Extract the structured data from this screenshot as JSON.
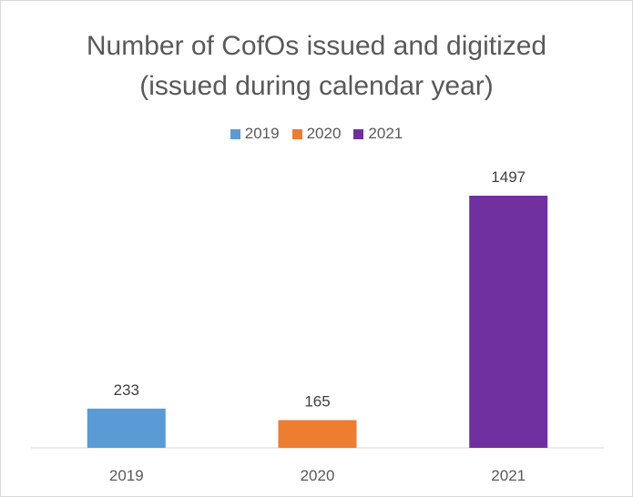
{
  "chart_data": {
    "type": "bar",
    "title_line1": "Number of CofOs issued and digitized",
    "title_line2": "(issued during calendar year)",
    "categories": [
      "2019",
      "2020",
      "2021"
    ],
    "series": [
      {
        "name": "2019",
        "values": [
          233,
          null,
          null
        ],
        "color": "#5b9bd5"
      },
      {
        "name": "2020",
        "values": [
          null,
          165,
          null
        ],
        "color": "#ed7d31"
      },
      {
        "name": "2021",
        "values": [
          null,
          null,
          1497
        ],
        "color": "#7030a0"
      }
    ],
    "values": [
      233,
      165,
      1497
    ],
    "colors": [
      "#5b9bd5",
      "#ed7d31",
      "#7030a0"
    ],
    "data_labels": [
      "233",
      "165",
      "1497"
    ],
    "ylim": [
      0,
      1600
    ],
    "grid": false,
    "legend_position": "top"
  }
}
